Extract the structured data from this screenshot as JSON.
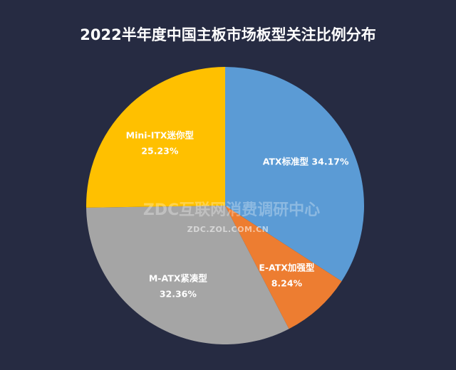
{
  "chart_data": {
    "type": "pie",
    "title": "2022半年度中国主板市场板型关注比例分布",
    "slices": [
      {
        "name": "ATX标准型",
        "value": 34.17,
        "label": "34.17%",
        "color": "#5b9bd5",
        "label_lines": 1
      },
      {
        "name": "E-ATX加强型",
        "value": 8.24,
        "label": "8.24%",
        "color": "#ed7d31",
        "label_lines": 2
      },
      {
        "name": "M-ATX紧凑型",
        "value": 32.36,
        "label": "32.36%",
        "color": "#a5a5a5",
        "label_lines": 2
      },
      {
        "name": "Mini-ITX迷你型",
        "value": 25.23,
        "label": "25.23%",
        "color": "#ffc000",
        "label_lines": 2
      }
    ],
    "start_angle": "12 o'clock",
    "direction": "clockwise",
    "legend": "none"
  },
  "watermark": {
    "main": "ZDC互联网消费调研中心",
    "url": "ZDC.ZOL.COM.CN"
  },
  "background_color": "#262b42"
}
